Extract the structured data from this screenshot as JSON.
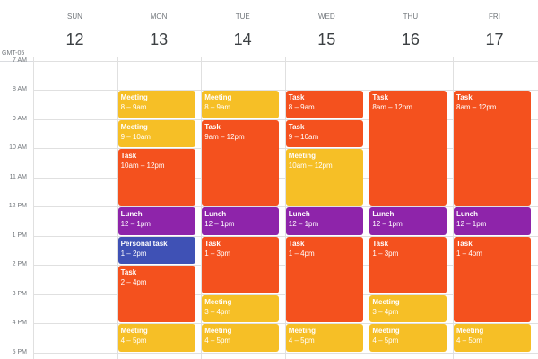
{
  "timezone": "GMT-05",
  "hours": [
    "7 AM",
    "8 AM",
    "9 AM",
    "10 AM",
    "11 AM",
    "12 PM",
    "1 PM",
    "2 PM",
    "3 PM",
    "4 PM",
    "5 PM"
  ],
  "days": [
    {
      "name": "SUN",
      "date": "12",
      "events": []
    },
    {
      "name": "MON",
      "date": "13",
      "events": [
        {
          "title": "Meeting",
          "time": "8 – 9am",
          "color": "#f6bf26"
        },
        {
          "title": "Meeting",
          "time": "9 – 10am",
          "color": "#f6bf26"
        },
        {
          "title": "Task",
          "time": "10am – 12pm",
          "color": "#f4511e"
        },
        {
          "title": "Lunch",
          "time": "12 – 1pm",
          "color": "#8e24aa"
        },
        {
          "title": "Personal task",
          "time": "1 – 2pm",
          "color": "#3f51b5"
        },
        {
          "title": "Task",
          "time": "2 – 4pm",
          "color": "#f4511e"
        },
        {
          "title": "Meeting",
          "time": "4 – 5pm",
          "color": "#f6bf26"
        }
      ]
    },
    {
      "name": "TUE",
      "date": "14",
      "events": [
        {
          "title": "Meeting",
          "time": "8 – 9am",
          "color": "#f6bf26"
        },
        {
          "title": "Task",
          "time": "9am – 12pm",
          "color": "#f4511e"
        },
        {
          "title": "Lunch",
          "time": "12 – 1pm",
          "color": "#8e24aa"
        },
        {
          "title": "Task",
          "time": "1 – 3pm",
          "color": "#f4511e"
        },
        {
          "title": "Meeting",
          "time": "3 – 4pm",
          "color": "#f6bf26"
        },
        {
          "title": "Meeting",
          "time": "4 – 5pm",
          "color": "#f6bf26"
        }
      ]
    },
    {
      "name": "WED",
      "date": "15",
      "events": [
        {
          "title": "Task",
          "time": "8 – 9am",
          "color": "#f4511e"
        },
        {
          "title": "Task",
          "time": "9 – 10am",
          "color": "#f4511e"
        },
        {
          "title": "Meeting",
          "time": "10am – 12pm",
          "color": "#f6bf26"
        },
        {
          "title": "Lunch",
          "time": "12 – 1pm",
          "color": "#8e24aa"
        },
        {
          "title": "Task",
          "time": "1 – 4pm",
          "color": "#f4511e"
        },
        {
          "title": "Meeting",
          "time": "4 – 5pm",
          "color": "#f6bf26"
        }
      ]
    },
    {
      "name": "THU",
      "date": "16",
      "events": [
        {
          "title": "Task",
          "time": "8am – 12pm",
          "color": "#f4511e"
        },
        {
          "title": "Lunch",
          "time": "12 – 1pm",
          "color": "#8e24aa"
        },
        {
          "title": "Task",
          "time": "1 – 3pm",
          "color": "#f4511e"
        },
        {
          "title": "Meeting",
          "time": "3 – 4pm",
          "color": "#f6bf26"
        },
        {
          "title": "Meeting",
          "time": "4 – 5pm",
          "color": "#f6bf26"
        }
      ]
    },
    {
      "name": "FRI",
      "date": "17",
      "events": [
        {
          "title": "Task",
          "time": "8am – 12pm",
          "color": "#f4511e"
        },
        {
          "title": "Lunch",
          "time": "12 – 1pm",
          "color": "#8e24aa"
        },
        {
          "title": "Task",
          "time": "1 – 4pm",
          "color": "#f4511e"
        },
        {
          "title": "Meeting",
          "time": "4 – 5pm",
          "color": "#f6bf26"
        }
      ]
    }
  ]
}
